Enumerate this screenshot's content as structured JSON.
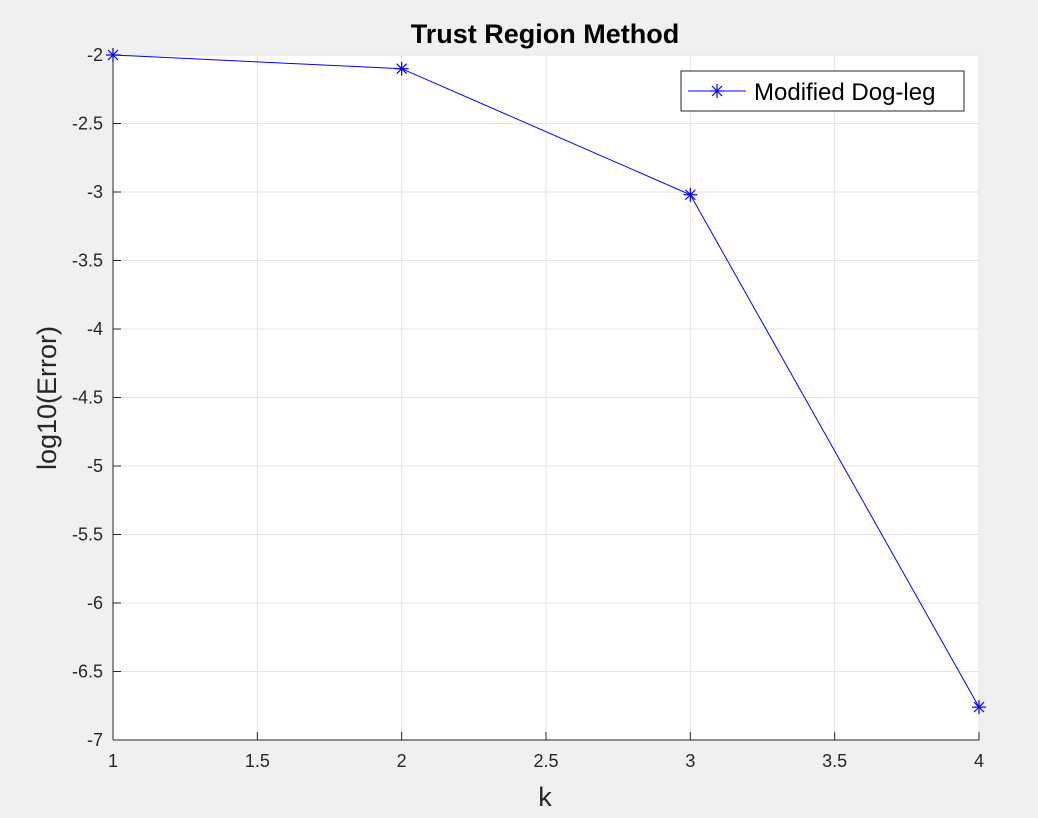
{
  "chart_data": {
    "type": "line",
    "title": "Trust Region Method",
    "xlabel": "k",
    "ylabel": "log10(Error)",
    "xlim": [
      1,
      4
    ],
    "ylim": [
      -7,
      -2
    ],
    "xticks": [
      1,
      1.5,
      2,
      2.5,
      3,
      3.5,
      4
    ],
    "xtick_labels": [
      "1",
      "1.5",
      "2",
      "2.5",
      "3",
      "3.5",
      "4"
    ],
    "yticks": [
      -2,
      -2.5,
      -3,
      -3.5,
      -4,
      -4.5,
      -5,
      -5.5,
      -6,
      -6.5,
      -7
    ],
    "ytick_labels": [
      "-2",
      "-2.5",
      "-3",
      "-3.5",
      "-4",
      "-4.5",
      "-5",
      "-5.5",
      "-6",
      "-6.5",
      "-7"
    ],
    "grid": true,
    "legend_position": "top-right",
    "series": [
      {
        "name": "Modified Dog-leg",
        "color": "#0000ff",
        "marker": "asterisk",
        "x": [
          1,
          2,
          3,
          4
        ],
        "y": [
          -2.0,
          -2.1,
          -3.02,
          -6.76
        ]
      }
    ]
  },
  "colors": {
    "figure_background": "#f0f0f0",
    "axes_background": "#ffffff",
    "grid": "#e3e3e3",
    "axis": "#262626",
    "text": "#262626"
  }
}
